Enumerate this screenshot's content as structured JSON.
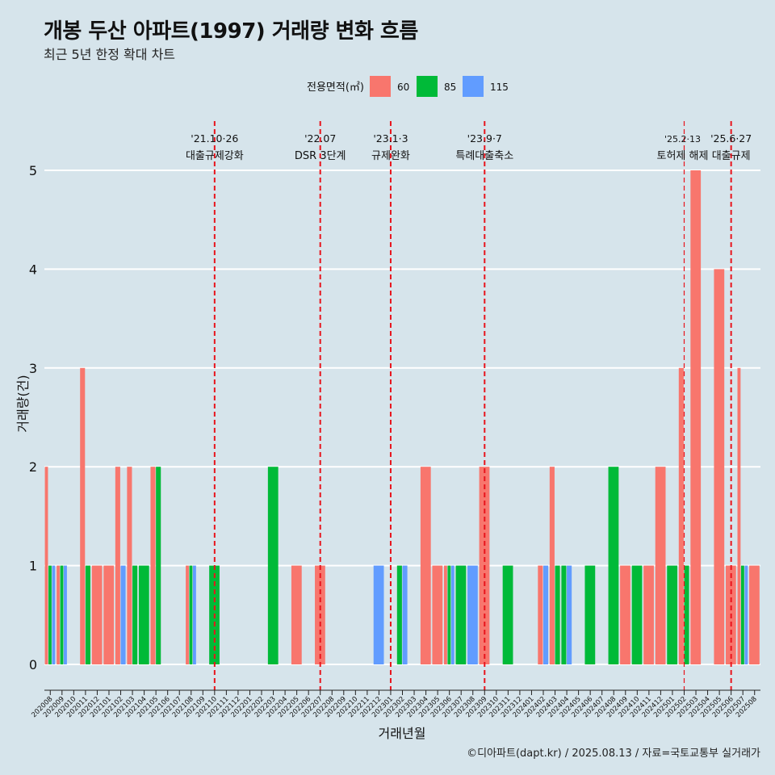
{
  "title": "개봉 두산 아파트(1997) 거래량 변화 흐름",
  "subtitle": "최근 5년 한정 확대 차트",
  "caption": "©디아파트(dapt.kr) / 2025.08.13 / 자료=국토교통부 실거래가",
  "legend": {
    "title": "전용면적(㎡)",
    "position": "top-center",
    "items": [
      {
        "name": "60",
        "color": "#f8766d"
      },
      {
        "name": "85",
        "color": "#00ba38"
      },
      {
        "name": "115",
        "color": "#619cff"
      }
    ]
  },
  "events": [
    {
      "month": "202110",
      "line1": "'21.10·26",
      "line2": "대출규제강화"
    },
    {
      "month": "202207",
      "line1": "'22.07",
      "line2": "DSR 3단계"
    },
    {
      "month": "202301",
      "line1": "'23.1·3",
      "line2": "규제완화"
    },
    {
      "month": "202309",
      "line1": "'23.9·7",
      "line2": "특례대출축소"
    },
    {
      "month": "202502",
      "line1": "'25.2·13",
      "line2": "토허제 해제"
    },
    {
      "month": "202506",
      "line1": "'25.6·27",
      "line2": "대출규제"
    }
  ],
  "chart_data": {
    "type": "bar",
    "xlabel": "거래년월",
    "ylabel": "거래량(건)",
    "ylim": [
      0,
      5
    ],
    "yticks": [
      0,
      1,
      2,
      3,
      4,
      5
    ],
    "grid": true,
    "categories": [
      "202008",
      "202009",
      "202010",
      "202011",
      "202012",
      "202101",
      "202102",
      "202103",
      "202104",
      "202105",
      "202106",
      "202107",
      "202108",
      "202109",
      "202110",
      "202111",
      "202112",
      "202201",
      "202202",
      "202203",
      "202204",
      "202205",
      "202206",
      "202207",
      "202208",
      "202209",
      "202210",
      "202211",
      "202212",
      "202301",
      "202302",
      "202303",
      "202304",
      "202305",
      "202306",
      "202307",
      "202308",
      "202309",
      "202310",
      "202311",
      "202312",
      "202401",
      "202402",
      "202403",
      "202404",
      "202405",
      "202406",
      "202407",
      "202408",
      "202409",
      "202410",
      "202411",
      "202412",
      "202501",
      "202502",
      "202503",
      "202504",
      "202505",
      "202506",
      "202507",
      "202508"
    ],
    "series": [
      {
        "name": "60",
        "values": [
          2,
          1,
          0,
          3,
          1,
          1,
          2,
          2,
          0,
          2,
          0,
          0,
          1,
          0,
          0,
          0,
          0,
          0,
          0,
          0,
          0,
          1,
          0,
          1,
          0,
          0,
          0,
          0,
          0,
          0,
          0,
          0,
          2,
          1,
          1,
          0,
          0,
          2,
          0,
          0,
          0,
          0,
          1,
          2,
          0,
          0,
          0,
          0,
          0,
          1,
          0,
          1,
          2,
          0,
          3,
          5,
          0,
          4,
          1,
          3,
          1
        ]
      },
      {
        "name": "85",
        "values": [
          1,
          1,
          0,
          1,
          0,
          0,
          0,
          1,
          1,
          2,
          0,
          0,
          1,
          0,
          1,
          0,
          0,
          0,
          0,
          2,
          0,
          0,
          0,
          0,
          0,
          0,
          0,
          0,
          0,
          0,
          1,
          0,
          0,
          0,
          1,
          1,
          0,
          0,
          0,
          1,
          0,
          0,
          0,
          1,
          1,
          0,
          1,
          0,
          2,
          0,
          1,
          0,
          0,
          1,
          1,
          0,
          0,
          0,
          0,
          1,
          0
        ]
      },
      {
        "name": "115",
        "values": [
          1,
          1,
          0,
          0,
          0,
          0,
          1,
          0,
          0,
          0,
          0,
          0,
          1,
          0,
          0,
          0,
          0,
          0,
          0,
          0,
          0,
          0,
          0,
          0,
          0,
          0,
          0,
          0,
          1,
          0,
          1,
          0,
          0,
          0,
          1,
          0,
          1,
          0,
          0,
          0,
          0,
          0,
          1,
          0,
          1,
          0,
          0,
          0,
          0,
          0,
          0,
          0,
          0,
          0,
          0,
          0,
          0,
          0,
          0,
          1,
          0
        ]
      }
    ]
  }
}
